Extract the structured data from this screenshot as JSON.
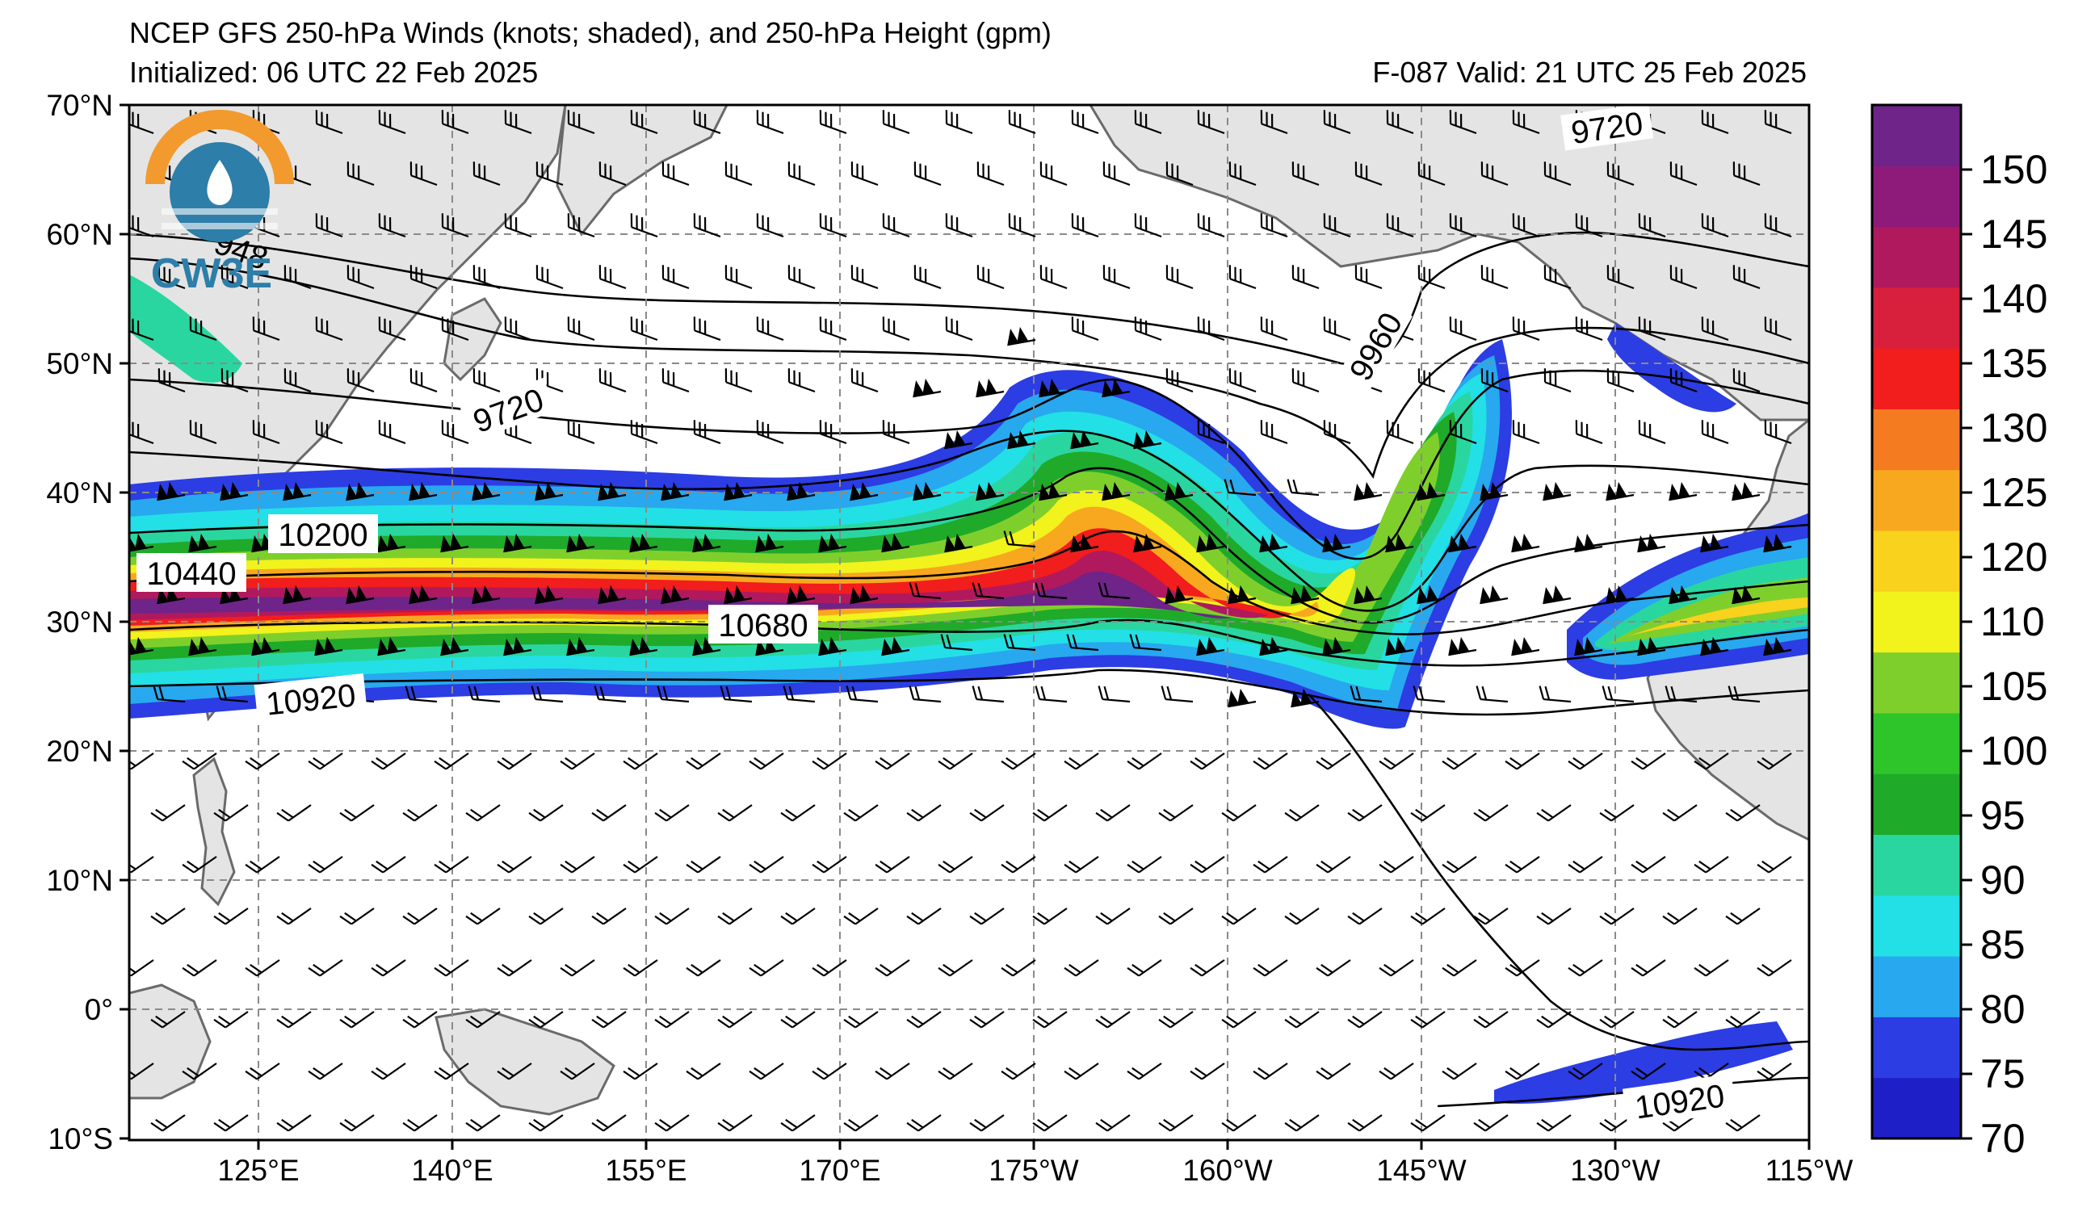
{
  "header": {
    "title": "NCEP GFS 250-hPa Winds (knots; shaded), and 250-hPa Height (gpm)",
    "initialized": "Initialized: 06 UTC 22 Feb 2025",
    "valid": "F-087  Valid: 21 UTC 25 Feb 2025"
  },
  "logo": {
    "text": "CW3E",
    "icon": "cw3e-logo-icon"
  },
  "axes": {
    "lat_labels": [
      "70°N",
      "60°N",
      "50°N",
      "40°N",
      "30°N",
      "20°N",
      "10°N",
      "0°",
      "10°S"
    ],
    "lon_labels": [
      "125°E",
      "140°E",
      "155°E",
      "170°E",
      "175°W",
      "160°W",
      "145°W",
      "130°W",
      "115°W"
    ]
  },
  "contour_labels": [
    "9720",
    "9960",
    "10200",
    "10440",
    "10680",
    "10920",
    "10920",
    "948"
  ],
  "colorbar": {
    "labels": [
      "70",
      "75",
      "80",
      "85",
      "90",
      "95",
      "100",
      "105",
      "110",
      "120",
      "125",
      "130",
      "135",
      "140",
      "145",
      "150"
    ],
    "colors": [
      "#1f1fc8",
      "#2c3de3",
      "#28a8ef",
      "#22e0e6",
      "#2ad6a0",
      "#1faa2a",
      "#2dc52a",
      "#7fcf2c",
      "#f2f21c",
      "#f8d21c",
      "#f8a81f",
      "#f57b21",
      "#f21d1d",
      "#d81f3c",
      "#b0195e",
      "#8e1a7a",
      "#6e2489"
    ]
  },
  "colors": {
    "land": "#e4e4e4",
    "coast": "#6a6a6a",
    "grid": "#8a8a8a"
  }
}
